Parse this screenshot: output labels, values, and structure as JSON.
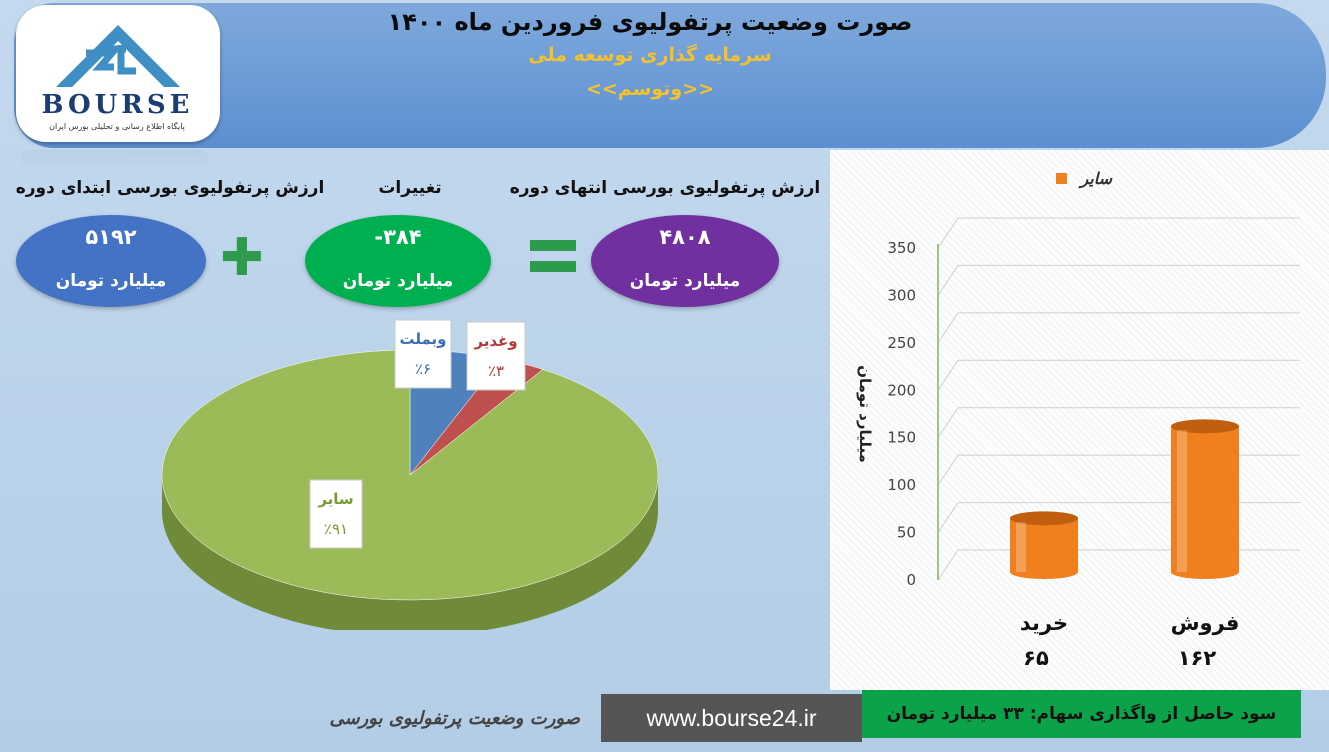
{
  "header": {
    "title": "صورت وضعیت پرتفولیوی فروردین ماه ۱۴۰۰",
    "company": "سرمایه گذاری توسعه ملی",
    "symbol": "<<وتوسم>>"
  },
  "logo": {
    "word": "BOURSE",
    "tagline": "پایگاه اطلاع رسانی و تحلیلی بورس ایران"
  },
  "summary": {
    "start_label": "ارزش پرتفولیوی بورسی ابتدای دوره",
    "start_value": "۵۱۹۲",
    "change_label": "تغییرات",
    "change_value": "-۳۸۴",
    "end_label": "ارزش پرتفولیوی بورسی انتهای دوره",
    "end_value": "۴۸۰۸",
    "unit": "میلیارد تومان",
    "colors": {
      "start": "#4472c4",
      "change": "#00b050",
      "end": "#7030a0"
    }
  },
  "chart_data": [
    {
      "type": "pie",
      "categories": [
        "سایر",
        "وبملت",
        "وغدیر"
      ],
      "values": [
        91,
        6,
        3
      ],
      "labels": [
        "٪۹۱",
        "٪۶",
        "٪۳"
      ],
      "colors": [
        "#9bbb59",
        "#4f81bd",
        "#c0504d"
      ]
    },
    {
      "type": "bar",
      "categories": [
        "خرید",
        "فروش"
      ],
      "series": [
        {
          "name": "سایر",
          "values": [
            65,
            162
          ]
        }
      ],
      "value_labels": [
        "۶۵",
        "۱۶۲"
      ],
      "ylabel": "میلیارد تومان",
      "ylim": [
        0,
        350
      ],
      "yticks": [
        0,
        50,
        100,
        150,
        200,
        250,
        300,
        350
      ],
      "grid": true,
      "legend": "top",
      "bar_color": "#f07f1e"
    }
  ],
  "footer": {
    "caption": "صورت وضعیت پرتفولیوی بورسی",
    "url": "www.bourse24.ir",
    "profit": "سود حاصل از واگذاری سهام: ۳۳ میلیارد تومان"
  }
}
